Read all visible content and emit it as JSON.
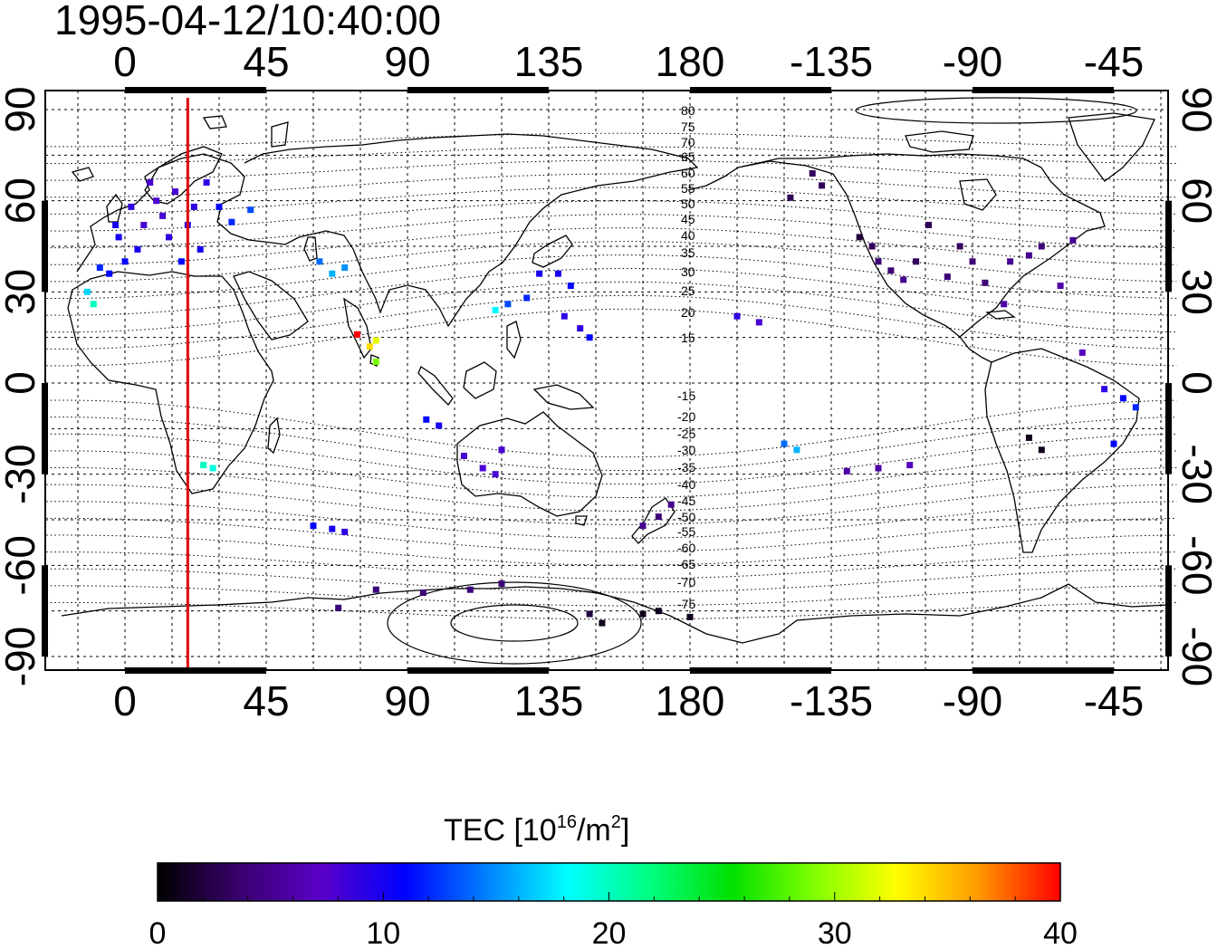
{
  "timestamp": "1995-04-12/10:40:00",
  "map": {
    "top_lon_labels": [
      "0",
      "45",
      "90",
      "135",
      "180",
      "-135",
      "-90",
      "-45"
    ],
    "bottom_lon_labels": [
      "0",
      "45",
      "90",
      "135",
      "180",
      "-135",
      "-90",
      "-45"
    ],
    "left_lat_labels": [
      "90",
      "60",
      "30",
      "0",
      "-30",
      "-60",
      "-90"
    ],
    "right_lat_labels": [
      "90",
      "60",
      "30",
      "0",
      "-30",
      "-60",
      "-90"
    ],
    "terminator_longitude": 20,
    "terminator_color": "#e00000",
    "magnetic_latitude_labels_north": [
      "80",
      "75",
      "70",
      "65",
      "60",
      "55",
      "50",
      "45",
      "40",
      "35",
      "30",
      "25",
      "20",
      "15"
    ],
    "magnetic_latitude_labels_south": [
      "-15",
      "-20",
      "-25",
      "-30",
      "-35",
      "-40",
      "-45",
      "-50",
      "-55",
      "-60",
      "-65",
      "-70",
      "-75"
    ]
  },
  "colorbar": {
    "title_prefix": "TEC  [10",
    "title_exp": "16",
    "title_mid": "/m",
    "title_exp2": "2",
    "title_suffix": "]",
    "tick_labels": [
      "0",
      "10",
      "20",
      "30",
      "40"
    ],
    "min": 0,
    "max": 40,
    "colors": [
      "#000000",
      "#3a006e",
      "#5a00c8",
      "#0000ff",
      "#0080ff",
      "#00ffff",
      "#00ff80",
      "#00e000",
      "#80ff00",
      "#ffff00",
      "#ff9900",
      "#ff0000"
    ]
  },
  "observations": [
    {
      "lon": -12,
      "lat": 30,
      "tec": 17
    },
    {
      "lon": -10,
      "lat": 26,
      "tec": 20
    },
    {
      "lon": -8,
      "lat": 38,
      "tec": 12
    },
    {
      "lon": -5,
      "lat": 36,
      "tec": 11
    },
    {
      "lon": -3,
      "lat": 52,
      "tec": 10
    },
    {
      "lon": -2,
      "lat": 48,
      "tec": 10
    },
    {
      "lon": 0,
      "lat": 40,
      "tec": 11
    },
    {
      "lon": 2,
      "lat": 58,
      "tec": 9
    },
    {
      "lon": 4,
      "lat": 44,
      "tec": 10
    },
    {
      "lon": 6,
      "lat": 52,
      "tec": 8
    },
    {
      "lon": 8,
      "lat": 66,
      "tec": 8
    },
    {
      "lon": 10,
      "lat": 60,
      "tec": 8
    },
    {
      "lon": 12,
      "lat": 55,
      "tec": 8
    },
    {
      "lon": 14,
      "lat": 48,
      "tec": 9
    },
    {
      "lon": 16,
      "lat": 63,
      "tec": 8
    },
    {
      "lon": 18,
      "lat": 40,
      "tec": 11
    },
    {
      "lon": 20,
      "lat": 52,
      "tec": 9
    },
    {
      "lon": 22,
      "lat": 58,
      "tec": 9
    },
    {
      "lon": 24,
      "lat": 44,
      "tec": 10
    },
    {
      "lon": 26,
      "lat": 66,
      "tec": 9
    },
    {
      "lon": 30,
      "lat": 58,
      "tec": 11
    },
    {
      "lon": 34,
      "lat": 53,
      "tec": 12
    },
    {
      "lon": 40,
      "lat": 57,
      "tec": 13
    },
    {
      "lon": 25,
      "lat": -27,
      "tec": 20
    },
    {
      "lon": 28,
      "lat": -28,
      "tec": 19
    },
    {
      "lon": 62,
      "lat": 40,
      "tec": 14
    },
    {
      "lon": 66,
      "lat": 36,
      "tec": 16
    },
    {
      "lon": 70,
      "lat": 38,
      "tec": 15
    },
    {
      "lon": 74,
      "lat": 16,
      "tec": 40
    },
    {
      "lon": 78,
      "lat": 12,
      "tec": 34
    },
    {
      "lon": 80,
      "lat": 14,
      "tec": 32
    },
    {
      "lon": 80,
      "lat": 7,
      "tec": 29
    },
    {
      "lon": 60,
      "lat": -47,
      "tec": 11
    },
    {
      "lon": 66,
      "lat": -48,
      "tec": 10
    },
    {
      "lon": 70,
      "lat": -49,
      "tec": 9
    },
    {
      "lon": 96,
      "lat": -12,
      "tec": 11
    },
    {
      "lon": 100,
      "lat": -14,
      "tec": 10
    },
    {
      "lon": 108,
      "lat": -24,
      "tec": 8
    },
    {
      "lon": 114,
      "lat": -28,
      "tec": 8
    },
    {
      "lon": 118,
      "lat": -30,
      "tec": 8
    },
    {
      "lon": 120,
      "lat": -22,
      "tec": 8
    },
    {
      "lon": 118,
      "lat": 24,
      "tec": 18
    },
    {
      "lon": 122,
      "lat": 26,
      "tec": 13
    },
    {
      "lon": 128,
      "lat": 28,
      "tec": 12
    },
    {
      "lon": 132,
      "lat": 36,
      "tec": 10
    },
    {
      "lon": 138,
      "lat": 36,
      "tec": 10
    },
    {
      "lon": 142,
      "lat": 32,
      "tec": 11
    },
    {
      "lon": 140,
      "lat": 22,
      "tec": 9
    },
    {
      "lon": 145,
      "lat": 18,
      "tec": 9
    },
    {
      "lon": 148,
      "lat": 15,
      "tec": 11
    },
    {
      "lon": 170,
      "lat": -44,
      "tec": 4
    },
    {
      "lon": 174,
      "lat": -40,
      "tec": 5
    },
    {
      "lon": 165,
      "lat": -47,
      "tec": 5
    },
    {
      "lon": 80,
      "lat": -68,
      "tec": 4
    },
    {
      "lon": 68,
      "lat": -74,
      "tec": 4
    },
    {
      "lon": 95,
      "lat": -69,
      "tec": 4
    },
    {
      "lon": 110,
      "lat": -68,
      "tec": 4
    },
    {
      "lon": 120,
      "lat": -66,
      "tec": 4
    },
    {
      "lon": 148,
      "lat": -76,
      "tec": 2
    },
    {
      "lon": 152,
      "lat": -79,
      "tec": 1
    },
    {
      "lon": 165,
      "lat": -76,
      "tec": 1
    },
    {
      "lon": 170,
      "lat": -75,
      "tec": 1
    },
    {
      "lon": 180,
      "lat": -77,
      "tec": 1
    },
    {
      "lon": -165,
      "lat": 22,
      "tec": 9
    },
    {
      "lon": -158,
      "lat": 20,
      "tec": 8
    },
    {
      "lon": -150,
      "lat": -20,
      "tec": 14
    },
    {
      "lon": -146,
      "lat": -22,
      "tec": 16
    },
    {
      "lon": -141,
      "lat": 69,
      "tec": 3
    },
    {
      "lon": -148,
      "lat": 61,
      "tec": 3
    },
    {
      "lon": -138,
      "lat": 65,
      "tec": 3
    },
    {
      "lon": -126,
      "lat": 48,
      "tec": 2
    },
    {
      "lon": -122,
      "lat": 45,
      "tec": 3
    },
    {
      "lon": -120,
      "lat": 40,
      "tec": 4
    },
    {
      "lon": -116,
      "lat": 37,
      "tec": 4
    },
    {
      "lon": -112,
      "lat": 34,
      "tec": 5
    },
    {
      "lon": -108,
      "lat": 40,
      "tec": 3
    },
    {
      "lon": -104,
      "lat": 52,
      "tec": 3
    },
    {
      "lon": -98,
      "lat": 35,
      "tec": 4
    },
    {
      "lon": -94,
      "lat": 45,
      "tec": 3
    },
    {
      "lon": -90,
      "lat": 40,
      "tec": 4
    },
    {
      "lon": -86,
      "lat": 33,
      "tec": 4
    },
    {
      "lon": -80,
      "lat": 26,
      "tec": 6
    },
    {
      "lon": -78,
      "lat": 40,
      "tec": 5
    },
    {
      "lon": -72,
      "lat": 42,
      "tec": 5
    },
    {
      "lon": -68,
      "lat": 45,
      "tec": 4
    },
    {
      "lon": -62,
      "lat": 32,
      "tec": 6
    },
    {
      "lon": -58,
      "lat": 47,
      "tec": 5
    },
    {
      "lon": -55,
      "lat": 10,
      "tec": 7
    },
    {
      "lon": -48,
      "lat": -2,
      "tec": 9
    },
    {
      "lon": -42,
      "lat": -5,
      "tec": 11
    },
    {
      "lon": -45,
      "lat": -20,
      "tec": 11
    },
    {
      "lon": -38,
      "lat": -8,
      "tec": 12
    },
    {
      "lon": -72,
      "lat": -18,
      "tec": 1
    },
    {
      "lon": -68,
      "lat": -22,
      "tec": 1
    },
    {
      "lon": -110,
      "lat": -27,
      "tec": 7
    },
    {
      "lon": -120,
      "lat": -28,
      "tec": 6
    },
    {
      "lon": -130,
      "lat": -29,
      "tec": 6
    }
  ]
}
